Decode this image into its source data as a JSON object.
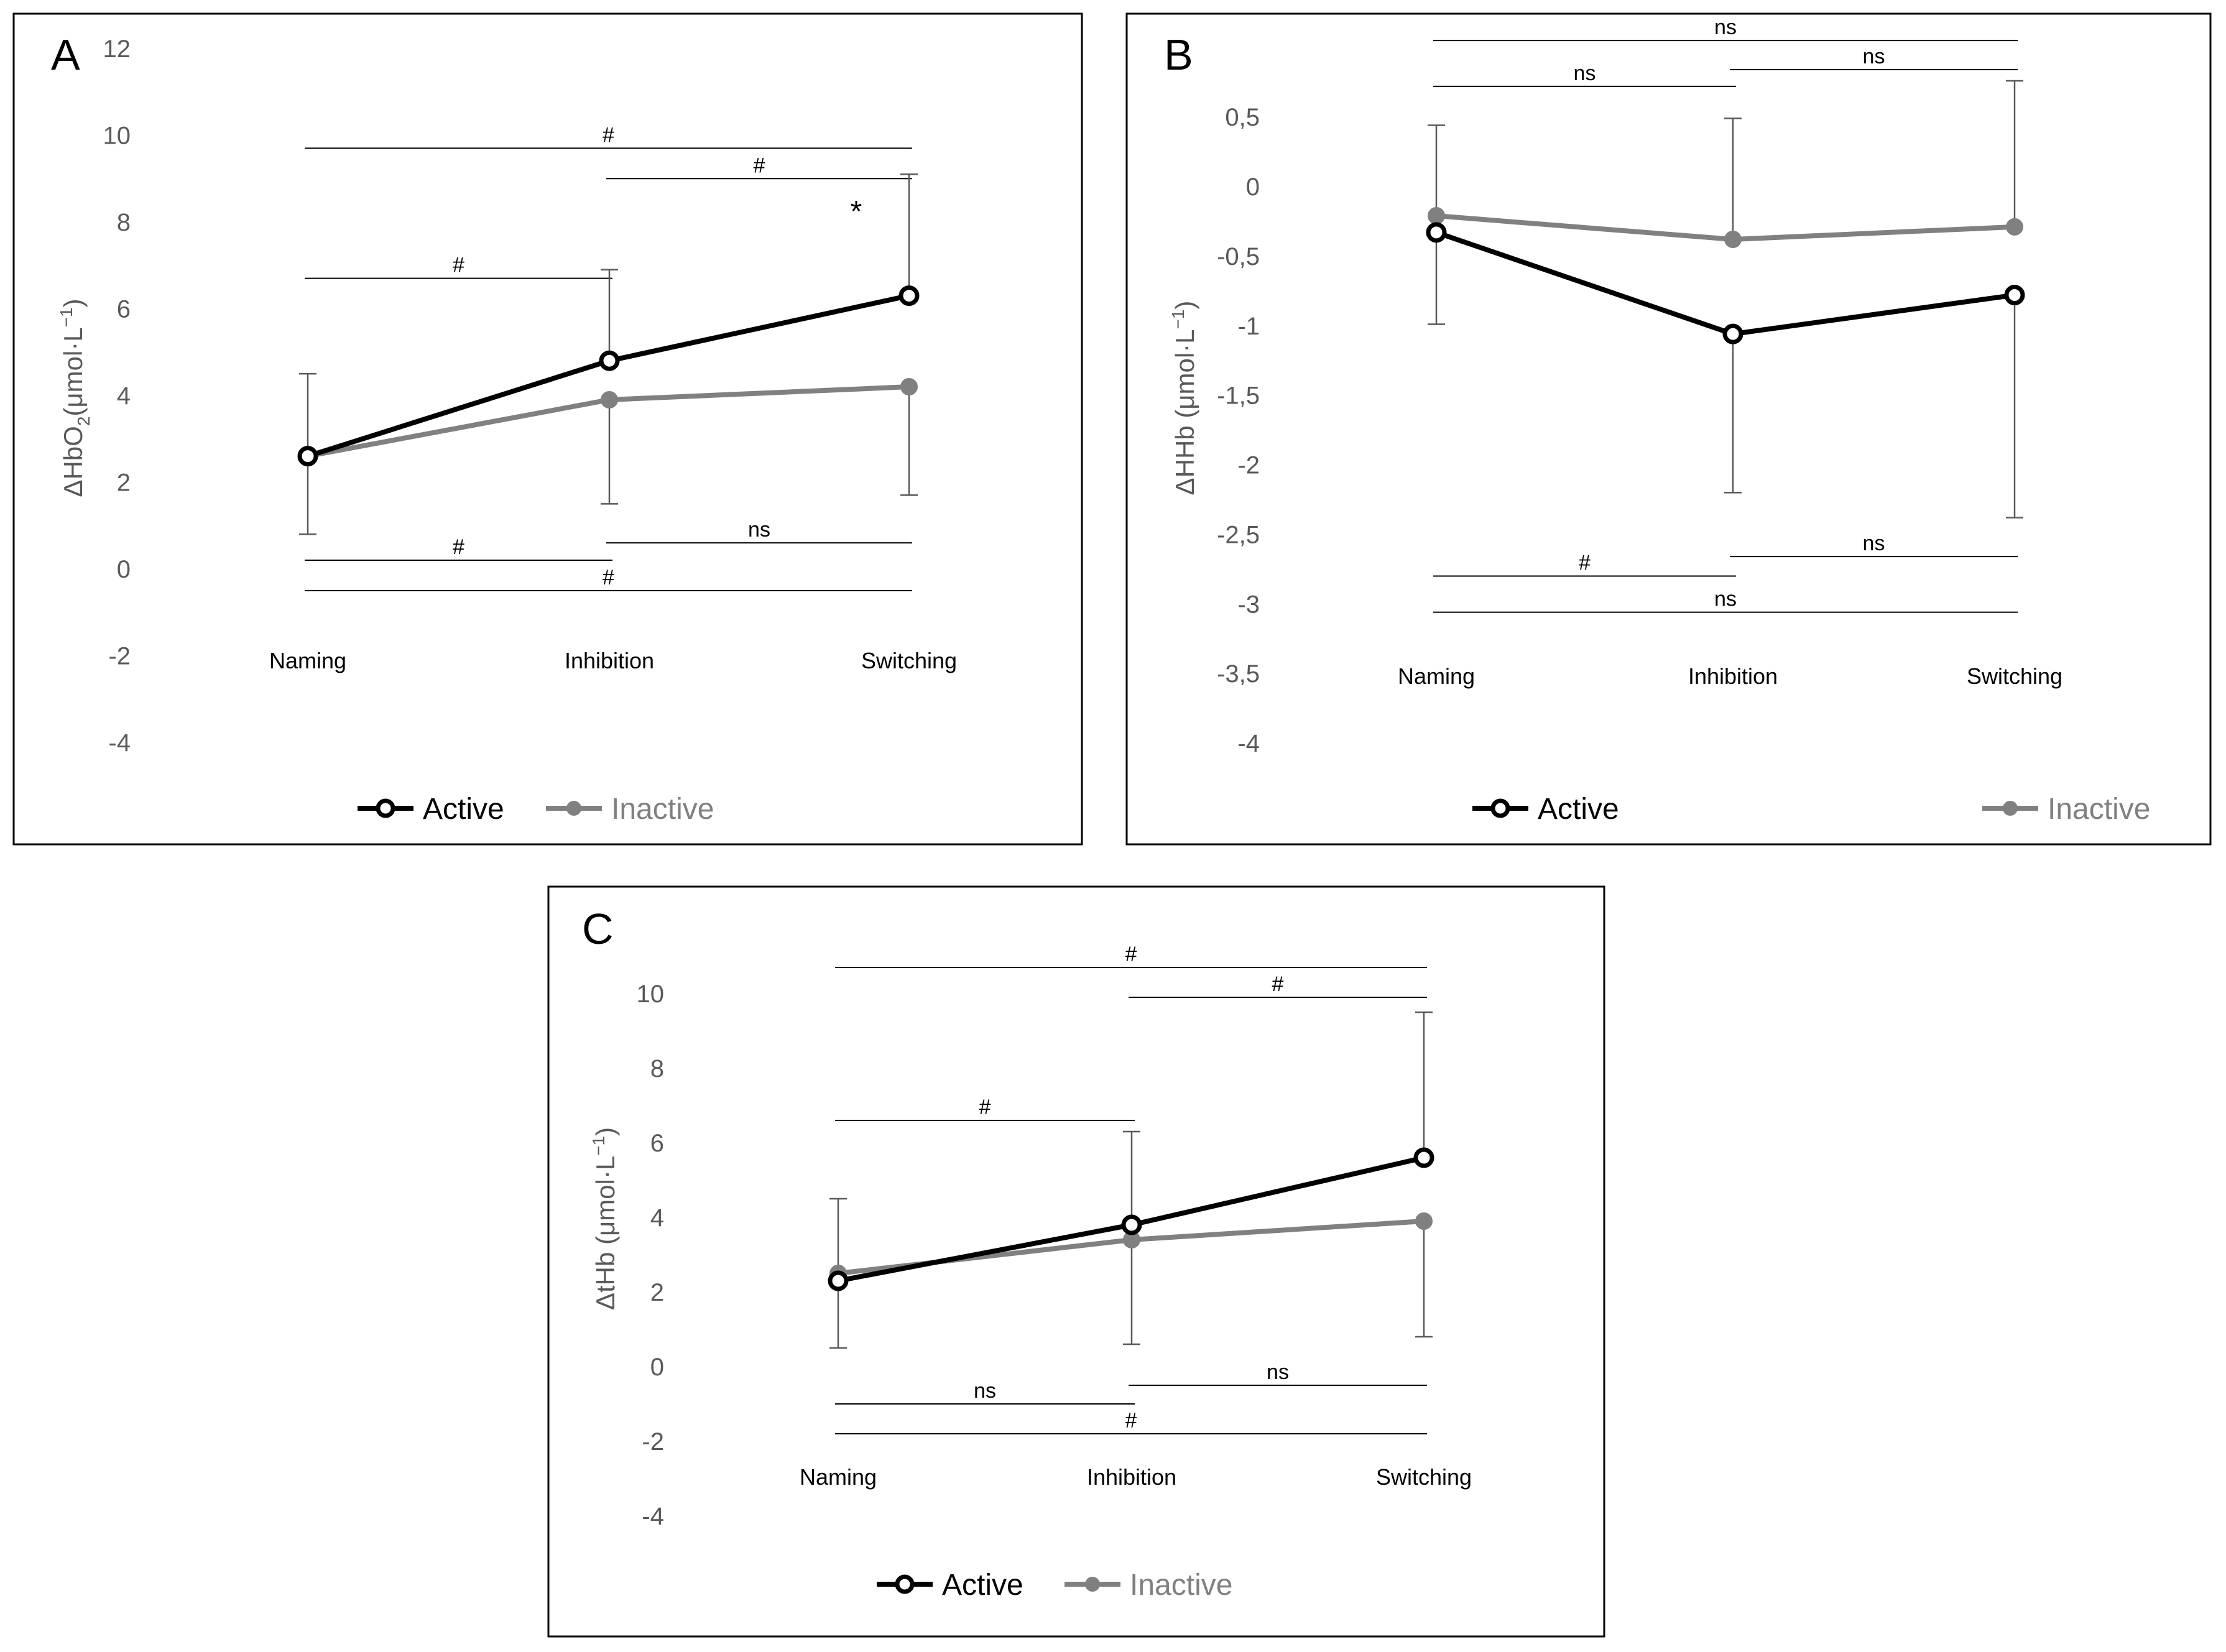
{
  "chart_data": [
    {
      "type": "line",
      "panel": "A",
      "ylabel_parts": [
        "ΔHbO",
        "2",
        "(μmol·L",
        "−1",
        ")"
      ],
      "ylim": [
        -4,
        12
      ],
      "yticks": [
        "12",
        "10",
        "8",
        "6",
        "4",
        "2",
        "0",
        "-2",
        "-4"
      ],
      "ytick_values": [
        12,
        10,
        8,
        6,
        4,
        2,
        0,
        -2,
        -4
      ],
      "categories": [
        "Naming",
        "Inhibition",
        "Switching"
      ],
      "series": [
        {
          "name": "Active",
          "color": "#000000",
          "marker": "open-circle",
          "values": [
            2.6,
            4.8,
            6.3
          ],
          "error_upper": [
            4.5,
            6.9,
            9.1
          ]
        },
        {
          "name": "Inactive",
          "color": "#808080",
          "marker": "filled-circle",
          "values": [
            2.6,
            3.9,
            4.2
          ],
          "error_lower": [
            0.8,
            1.5,
            1.7
          ]
        }
      ],
      "comparisons_above": [
        {
          "from": 0,
          "to": 2,
          "y": 9.7,
          "label": "#"
        },
        {
          "from": 1,
          "to": 2,
          "y": 9.0,
          "label": "#"
        },
        {
          "from": 0,
          "to": 1,
          "y": 6.7,
          "label": "#"
        }
      ],
      "comparisons_below": [
        {
          "from": 1,
          "to": 2,
          "y": 0.6,
          "label": "ns"
        },
        {
          "from": 0,
          "to": 1,
          "y": 0.2,
          "label": "#"
        },
        {
          "from": 0,
          "to": 2,
          "y": -0.5,
          "label": "#"
        }
      ],
      "annotations": [
        {
          "category": 2,
          "y": 8.3,
          "text": "*"
        }
      ],
      "legend": [
        "Active",
        "Inactive"
      ]
    },
    {
      "type": "line",
      "panel": "B",
      "ylabel_parts": [
        "ΔHHb (μmol·L",
        "−1",
        ")"
      ],
      "ylim": [
        -4,
        0.5
      ],
      "yticks": [
        "0,5",
        "0",
        "-0,5",
        "-1",
        "-1,5",
        "-2",
        "-2,5",
        "-3",
        "-3,5",
        "-4"
      ],
      "ytick_values": [
        0.5,
        0,
        -0.5,
        -1,
        -1.5,
        -2,
        -2.5,
        -3,
        -3.5,
        -4
      ],
      "categories": [
        "Naming",
        "Inhibition",
        "Switching"
      ],
      "series": [
        {
          "name": "Active",
          "color": "#000000",
          "marker": "open-circle",
          "values": [
            -0.33,
            -1.06,
            -0.78
          ],
          "error_lower": [
            -0.99,
            -2.2,
            -2.38
          ]
        },
        {
          "name": "Inactive",
          "color": "#808080",
          "marker": "filled-circle",
          "values": [
            -0.21,
            -0.38,
            -0.29
          ],
          "error_upper": [
            0.44,
            0.49,
            0.76
          ]
        }
      ],
      "comparisons_above": [
        {
          "from": 0,
          "to": 2,
          "y": 1.05,
          "label": "ns"
        },
        {
          "from": 1,
          "to": 2,
          "y": 0.84,
          "label": "ns"
        },
        {
          "from": 0,
          "to": 1,
          "y": 0.72,
          "label": "ns"
        }
      ],
      "comparisons_below": [
        {
          "from": 1,
          "to": 2,
          "y": -2.66,
          "label": "ns"
        },
        {
          "from": 0,
          "to": 1,
          "y": -2.8,
          "label": "#"
        },
        {
          "from": 0,
          "to": 2,
          "y": -3.06,
          "label": "ns"
        }
      ],
      "annotations": [],
      "legend": [
        "Active",
        "Inactive"
      ]
    },
    {
      "type": "line",
      "panel": "C",
      "ylabel_parts": [
        "ΔtHb (μmol·L",
        "−1",
        ")"
      ],
      "ylim": [
        -4,
        10
      ],
      "yticks": [
        "10",
        "8",
        "6",
        "4",
        "2",
        "0",
        "-2",
        "-4"
      ],
      "ytick_values": [
        10,
        8,
        6,
        4,
        2,
        0,
        -2,
        -4
      ],
      "categories": [
        "Naming",
        "Inhibition",
        "Switching"
      ],
      "series": [
        {
          "name": "Active",
          "color": "#000000",
          "marker": "open-circle",
          "values": [
            2.3,
            3.8,
            5.6
          ],
          "error_upper": [
            4.5,
            6.3,
            9.5
          ]
        },
        {
          "name": "Inactive",
          "color": "#808080",
          "marker": "filled-circle",
          "values": [
            2.5,
            3.4,
            3.9
          ],
          "error_lower": [
            0.5,
            0.6,
            0.8
          ]
        }
      ],
      "comparisons_above": [
        {
          "from": 0,
          "to": 2,
          "y": 10.7,
          "label": "#"
        },
        {
          "from": 1,
          "to": 2,
          "y": 9.9,
          "label": "#"
        },
        {
          "from": 0,
          "to": 1,
          "y": 6.6,
          "label": "#"
        }
      ],
      "comparisons_below": [
        {
          "from": 1,
          "to": 2,
          "y": -0.5,
          "label": "ns"
        },
        {
          "from": 0,
          "to": 1,
          "y": -1.0,
          "label": "ns"
        },
        {
          "from": 0,
          "to": 2,
          "y": -1.8,
          "label": "#"
        }
      ],
      "annotations": [],
      "legend": [
        "Active",
        "Inactive"
      ]
    }
  ]
}
